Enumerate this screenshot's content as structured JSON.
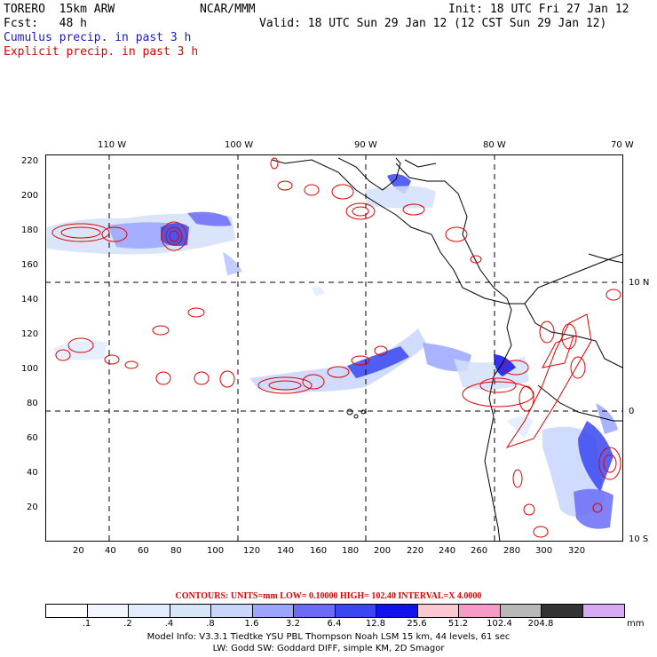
{
  "header": {
    "model": "TORERO  15km ARW",
    "org": "NCAR/MMM",
    "init": "Init: 18 UTC Fri 27 Jan 12",
    "fcst": "Fcst:   48 h",
    "valid": "Valid: 18 UTC Sun 29 Jan 12 (12 CST Sun 29 Jan 12)",
    "cumulus": "Cumulus precip. in past 3 h",
    "explicit": "Explicit precip. in past 3 h"
  },
  "colors": {
    "header_blue": "#1a1acc",
    "header_red": "#dd0000",
    "coast": "#000000",
    "contour": "#dd0000"
  },
  "axes": {
    "top_lon_labels": [
      "110 W",
      "100 W",
      "90 W",
      "80 W",
      "70 W"
    ],
    "right_lat_labels": [
      "10 N",
      "0",
      "10 S"
    ],
    "y_ticks": [
      "220",
      "200",
      "180",
      "160",
      "140",
      "120",
      "100",
      "80",
      "60",
      "40",
      "20"
    ],
    "x_ticks": [
      "20",
      "40",
      "60",
      "80",
      "100",
      "120",
      "140",
      "160",
      "180",
      "200",
      "220",
      "240",
      "260",
      "280",
      "300",
      "320"
    ]
  },
  "legend": {
    "contours_text": "CONTOURS:  UNITS=mm  LOW= 0.10000      HIGH=  102.40      INTERVAL=X  4.0000",
    "unit": "mm",
    "bins": [
      {
        "color": "#ffffff",
        "label": ".1"
      },
      {
        "color": "#f2f6ff",
        "label": ".2"
      },
      {
        "color": "#e2ecff",
        "label": ".4"
      },
      {
        "color": "#d4e6f8",
        "label": ".8"
      },
      {
        "color": "#c8d6ff",
        "label": "1.6"
      },
      {
        "color": "#9aa6ff",
        "label": "3.2"
      },
      {
        "color": "#6a6cf6",
        "label": "6.4"
      },
      {
        "color": "#3a46f0",
        "label": "12.8"
      },
      {
        "color": "#1212ee",
        "label": "25.6"
      },
      {
        "color": "#ffc8d0",
        "label": "51.2"
      },
      {
        "color": "#f79ac8",
        "label": "102.4"
      },
      {
        "color": "#b8b8b8",
        "label": "204.8"
      },
      {
        "color": "#333333",
        "label": ""
      },
      {
        "color": "#d8aaf4",
        "label": ""
      }
    ]
  },
  "footer": {
    "line1": "Model Info: V3.3.1    Tiedtke YSU PBL  Thompson    Noah LSM  15 km,    44 levels,    61 sec",
    "line2": "LW: Godd SW: Goddard DIFF, simple KM, 2D Smagor"
  }
}
